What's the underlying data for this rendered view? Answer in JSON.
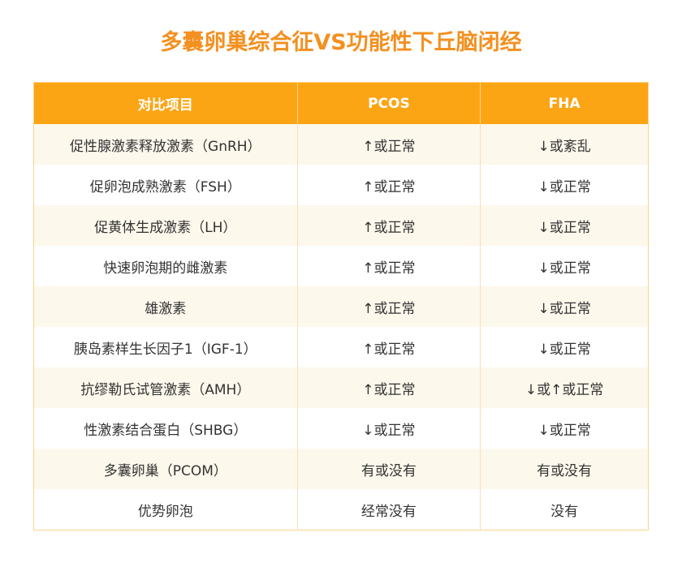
{
  "title": "多囊卵巢综合征VS功能性下丘脑闭经",
  "colors": {
    "title": "#f39020",
    "header_bg": "#fca514",
    "row_alt_bg": "#fdf8ec"
  },
  "table": {
    "headers": [
      "对比项目",
      "PCOS",
      "FHA"
    ],
    "rows": [
      [
        "促性腺激素释放激素（GnRH）",
        "↑或正常",
        "↓或紊乱"
      ],
      [
        "促卵泡成熟激素（FSH）",
        "↑或正常",
        "↓或正常"
      ],
      [
        "促黄体生成激素（LH）",
        "↑或正常",
        "↓或正常"
      ],
      [
        "快速卵泡期的雌激素",
        "↑或正常",
        "↓或正常"
      ],
      [
        "雄激素",
        "↑或正常",
        "↓或正常"
      ],
      [
        "胰岛素样生长因子1（IGF-1）",
        "↑或正常",
        "↓或正常"
      ],
      [
        "抗缪勒氏试管激素（AMH）",
        "↑或正常",
        "↓或↑或正常"
      ],
      [
        "性激素结合蛋白（SHBG）",
        "↓或正常",
        "↓或正常"
      ],
      [
        "多囊卵巢（PCOM）",
        "有或没有",
        "有或没有"
      ],
      [
        "优势卵泡",
        "经常没有",
        "没有"
      ]
    ]
  }
}
